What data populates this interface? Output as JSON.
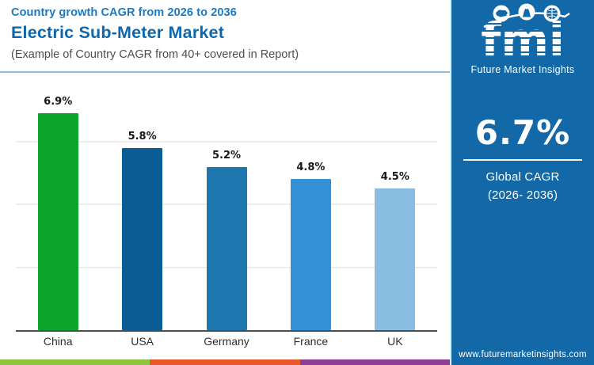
{
  "header": {
    "kicker": "Country growth CAGR from 2026 to 2036",
    "title": "Electric Sub-Meter Market",
    "subtitle": "(Example of Country CAGR from 40+ covered in Report)"
  },
  "chart_data": {
    "type": "bar",
    "title": "Country growth CAGR from 2026 to 2036 — Electric Sub-Meter Market",
    "categories": [
      "China",
      "USA",
      "Germany",
      "France",
      "UK"
    ],
    "values": [
      6.9,
      5.8,
      5.2,
      4.8,
      4.5
    ],
    "value_labels": [
      "6.9%",
      "5.8%",
      "5.2%",
      "4.8%",
      "4.5%"
    ],
    "bar_colors": [
      "#0da62d",
      "#0b5b95",
      "#1e76af",
      "#3390d4",
      "#8abde2"
    ],
    "xlabel": "",
    "ylabel": "",
    "ylim": [
      0,
      7
    ],
    "gridlines": [
      2,
      4,
      6
    ],
    "grid": true,
    "legend": false
  },
  "sidebar": {
    "background": "#1368a7",
    "logo": {
      "brand": "fmi",
      "caption": "Future Market Insights"
    },
    "global_cagr_value": "6.7%",
    "global_cagr_label_line1": "Global CAGR",
    "global_cagr_label_line2": "(2026- 2036)",
    "website": "www.futuremarketinsights.com"
  },
  "footer_stripe_colors": [
    "#8dc63f",
    "#e8582a",
    "#8e3d97"
  ]
}
